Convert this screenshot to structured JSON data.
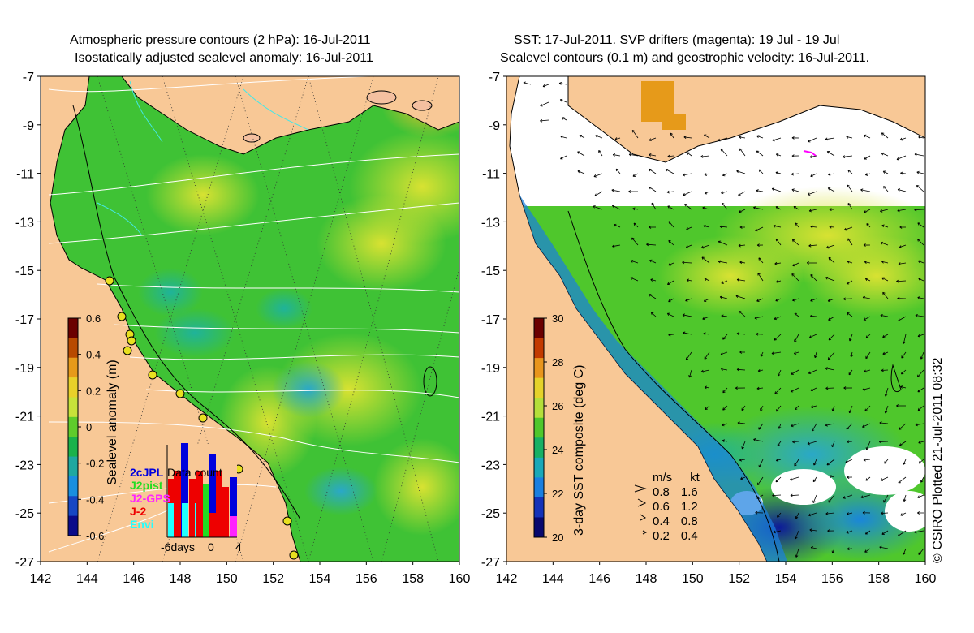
{
  "left_panel": {
    "title_line1": "Atmospheric pressure contours (2 hPa): 16-Jul-2011",
    "title_line2": "Isostatically adjusted sealevel anomaly: 16-Jul-2011",
    "colorbar": {
      "label": "Sealevel anomaly (m)",
      "ticks": [
        "0.6",
        "0.4",
        "0.2",
        "0",
        "-0.2",
        "-0.4",
        "-0.6"
      ],
      "colors": [
        "#6b0000",
        "#b84a00",
        "#e69a1a",
        "#e8d12a",
        "#c7e23a",
        "#5fcc2c",
        "#1bb24b",
        "#1fa8a0",
        "#1a8fdf",
        "#1747c4",
        "#0b0b8a"
      ]
    },
    "satellite_legend": {
      "title": "Data count",
      "entries": [
        {
          "name": "2cJPL",
          "color": "#0000dd"
        },
        {
          "name": "J2pist",
          "color": "#22dd22"
        },
        {
          "name": "J2-GPS",
          "color": "#ff22ff"
        },
        {
          "name": "J-2",
          "color": "#ee0000"
        },
        {
          "name": "Envi",
          "color": "#22ffff"
        }
      ],
      "x_ticks": [
        "-6days",
        "0",
        "4"
      ]
    },
    "y_ticks": [
      "-7",
      "-9",
      "-11",
      "-13",
      "-15",
      "-17",
      "-19",
      "-21",
      "-23",
      "-25",
      "-27"
    ],
    "x_ticks": [
      "142",
      "144",
      "146",
      "148",
      "150",
      "152",
      "154",
      "156",
      "158",
      "160"
    ]
  },
  "right_panel": {
    "title_line1": "SST: 17-Jul-2011. SVP drifters (magenta): 19 Jul - 19 Jul",
    "title_line2": "Sealevel contours (0.1 m) and geostrophic velocity: 16-Jul-2011.",
    "colorbar": {
      "label": "3-day SST composite (deg C)",
      "ticks": [
        "30",
        "28",
        "26",
        "24",
        "22",
        "20"
      ],
      "colors": [
        "#6b0000",
        "#c23a00",
        "#e8951c",
        "#e5d22a",
        "#b4df3a",
        "#4fc72c",
        "#18b064",
        "#1aa8b8",
        "#1a7fe0",
        "#1432b8",
        "#08086e"
      ]
    },
    "velocity_legend": {
      "header_ms": "m/s",
      "header_kt": "kt",
      "rows": [
        {
          "ms": "0.8",
          "kt": "1.6"
        },
        {
          "ms": "0.6",
          "kt": "1.2"
        },
        {
          "ms": "0.4",
          "kt": "0.8"
        },
        {
          "ms": "0.2",
          "kt": "0.4"
        }
      ]
    },
    "y_ticks": [
      "-7",
      "-9",
      "-11",
      "-13",
      "-15",
      "-17",
      "-19",
      "-21",
      "-23",
      "-25",
      "-27"
    ],
    "x_ticks": [
      "142",
      "144",
      "146",
      "148",
      "150",
      "152",
      "154",
      "156",
      "158",
      "160"
    ]
  },
  "credit": "© CSIRO Plotted 21-Jul-2011 08:32",
  "colors": {
    "land": "#f8c896",
    "sea_green": "#3fc235",
    "sea_yellow": "#d8e232",
    "cloud": "#ffffff",
    "drifter": "#ff00ff"
  }
}
